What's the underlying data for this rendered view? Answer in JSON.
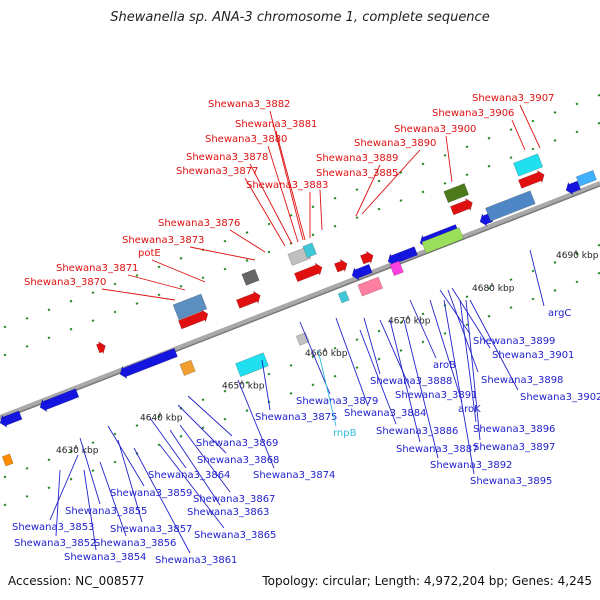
{
  "title": "Shewanella sp. ANA-3 chromosome 1, complete sequence",
  "footer": {
    "accession": "Accession: NC_008577",
    "topology": "Topology: circular; Length: 4,972,204 bp; Genes: 4,245"
  },
  "colors": {
    "forward_label": "#dd1111",
    "reverse_label": "#2222cc",
    "rna_label": "#33bbdd",
    "backbone": "#999999"
  },
  "scale_ticks": [
    "4630 kbp",
    "4640 kbp",
    "4650 kbp",
    "4660 kbp",
    "4670 kbp",
    "4680 kbp",
    "4690 kbp"
  ],
  "forward_labels": [
    "Shewana3_3882",
    "Shewana3_3881",
    "Shewana3_3880",
    "Shewana3_3878",
    "Shewana3_3877",
    "Shewana3_3883",
    "Shewana3_3885",
    "Shewana3_3889",
    "Shewana3_3890",
    "Shewana3_3900",
    "Shewana3_3906",
    "Shewana3_3907",
    "Shewana3_3876",
    "Shewana3_3873",
    "potE",
    "Shewana3_3871",
    "Shewana3_3870"
  ],
  "reverse_labels": [
    "argC",
    "Shewana3_3899",
    "Shewana3_3901",
    "Shewana3_3898",
    "Shewana3_3902",
    "Shewana3_3879",
    "Shewana3_3888",
    "aroB",
    "Shewana3_3891",
    "aroK",
    "Shewana3_3884",
    "Shewana3_3886",
    "Shewana3_3887",
    "Shewana3_3896",
    "Shewana3_3897",
    "Shewana3_3892",
    "Shewana3_3895",
    "Shewana3_3875",
    "Shewana3_3869",
    "Shewana3_3868",
    "Shewana3_3874",
    "Shewana3_3864",
    "Shewana3_3867",
    "Shewana3_3859",
    "Shewana3_3855",
    "Shewana3_3863",
    "Shewana3_3853",
    "Shewana3_3857",
    "Shewana3_3865",
    "Shewana3_3852",
    "Shewana3_3856",
    "Shewana3_3854",
    "Shewana3_3861"
  ],
  "rna_labels": [
    "rnpB"
  ]
}
